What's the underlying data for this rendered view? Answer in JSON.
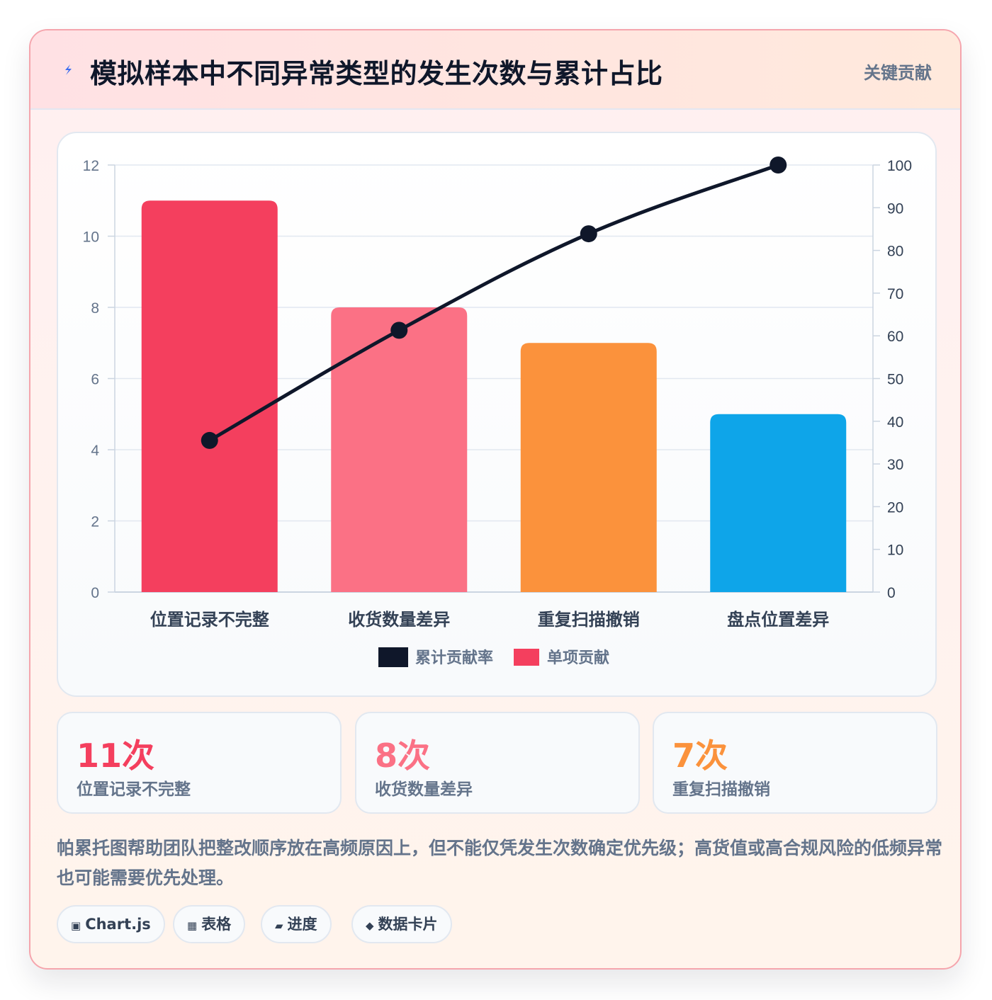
{
  "header": {
    "title": "模拟样本中不同异常类型的发生次数与累计占比",
    "tag": "关键贡献",
    "icon": "lightning-icon"
  },
  "chart_data": {
    "type": "bar",
    "categories": [
      "位置记录不完整",
      "收货数量差异",
      "重复扫描撤销",
      "盘点位置差异"
    ],
    "series": [
      {
        "name": "单项贡献",
        "type": "bar",
        "axis": "left",
        "values": [
          11,
          8,
          7,
          5
        ],
        "colors": [
          "#f43f5e",
          "#fb7185",
          "#fb923c",
          "#0ea5e9"
        ]
      },
      {
        "name": "累计贡献率",
        "type": "line",
        "axis": "right",
        "values": [
          35.5,
          61.3,
          83.9,
          100
        ],
        "color": "#0f172a"
      }
    ],
    "y_left": {
      "min": 0,
      "max": 12,
      "ticks": [
        0,
        2,
        4,
        6,
        8,
        10,
        12
      ]
    },
    "y_right": {
      "min": 0,
      "max": 100,
      "ticks": [
        0,
        10,
        20,
        30,
        40,
        50,
        60,
        70,
        80,
        90,
        100
      ]
    },
    "legend": [
      {
        "label": "累计贡献率",
        "color": "#0f172a"
      },
      {
        "label": "单项贡献",
        "color": "#f43f5e"
      }
    ],
    "legend_position": "bottom",
    "grid": true
  },
  "stats": [
    {
      "value": "11次",
      "label": "位置记录不完整",
      "color": "#f43f5e"
    },
    {
      "value": "8次",
      "label": "收货数量差异",
      "color": "#fb7185"
    },
    {
      "value": "7次",
      "label": "重复扫描撤销",
      "color": "#fb923c"
    }
  ],
  "note": "帕累托图帮助团队把整改顺序放在高频原因上，但不能仅凭发生次数确定优先级；高货值或高合规风险的低频异常也可能需要优先处理。",
  "tags": [
    {
      "icon": "▣",
      "label": "Chart.js"
    },
    {
      "icon": "▦",
      "label": "表格"
    },
    {
      "icon": "▰",
      "label": "进度"
    },
    {
      "icon": "◆",
      "label": "数据卡片"
    }
  ]
}
